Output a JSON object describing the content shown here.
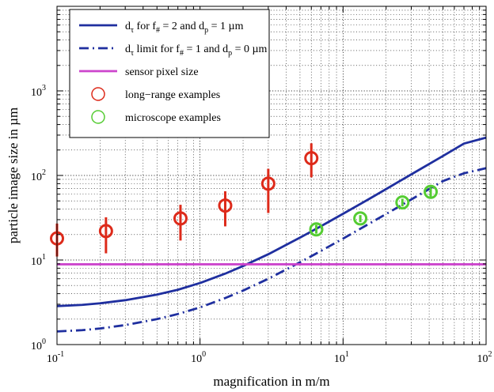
{
  "chart_data": {
    "type": "line",
    "xlabel": "magnification in m/m",
    "ylabel": "particle image size in µm",
    "xscale": "log",
    "yscale": "log",
    "xlim": [
      0.1,
      100
    ],
    "ylim": [
      1,
      10000
    ],
    "grid": "major-and-minor",
    "x_ticks": [
      {
        "base": "10",
        "exp": "-1"
      },
      {
        "base": "10",
        "exp": "0"
      },
      {
        "base": "10",
        "exp": "1"
      },
      {
        "base": "10",
        "exp": "2"
      }
    ],
    "y_ticks": [
      {
        "base": "10",
        "exp": "0"
      },
      {
        "base": "10",
        "exp": "1"
      },
      {
        "base": "10",
        "exp": "2"
      },
      {
        "base": "10",
        "exp": "3"
      }
    ],
    "legend_position": "top-left",
    "series": [
      {
        "name_parts": {
          "pre": "d",
          "sub1": "τ",
          "mid": " for f",
          "sub2": "#",
          "post": " = 2 and d",
          "sub3": "p",
          "end": " = 1 µm"
        },
        "color": "#1f2f9f",
        "style": "solid",
        "points": [
          [
            0.1,
            2.85
          ],
          [
            0.15,
            2.95
          ],
          [
            0.2,
            3.08
          ],
          [
            0.3,
            3.35
          ],
          [
            0.5,
            3.9
          ],
          [
            0.7,
            4.45
          ],
          [
            1,
            5.35
          ],
          [
            1.5,
            6.9
          ],
          [
            2,
            8.5
          ],
          [
            3,
            11.7
          ],
          [
            5,
            18.4
          ],
          [
            7,
            25.1
          ],
          [
            10,
            35.2
          ],
          [
            15,
            52
          ],
          [
            20,
            69
          ],
          [
            30,
            103
          ],
          [
            50,
            170
          ],
          [
            70,
            238
          ],
          [
            100,
            280
          ]
        ]
      },
      {
        "name_parts": {
          "pre": "d",
          "sub1": "τ",
          "mid": " limit for f",
          "sub2": "#",
          "post": " = 1 and d",
          "sub3": "p",
          "end": " = 0 µm"
        },
        "color": "#1f2f9f",
        "style": "dash-dot",
        "points": [
          [
            0.1,
            1.43
          ],
          [
            0.15,
            1.48
          ],
          [
            0.2,
            1.55
          ],
          [
            0.3,
            1.7
          ],
          [
            0.5,
            2.0
          ],
          [
            0.7,
            2.3
          ],
          [
            1,
            2.75
          ],
          [
            1.5,
            3.55
          ],
          [
            2,
            4.35
          ],
          [
            3,
            6.0
          ],
          [
            5,
            9.4
          ],
          [
            7,
            12.8
          ],
          [
            10,
            17.9
          ],
          [
            15,
            26.5
          ],
          [
            20,
            35
          ],
          [
            30,
            52
          ],
          [
            50,
            86
          ],
          [
            70,
            106
          ],
          [
            100,
            122
          ]
        ]
      },
      {
        "name": "sensor pixel size",
        "color": "#cc44cc",
        "style": "solid",
        "points": [
          [
            0.1,
            8.9
          ],
          [
            100,
            8.9
          ]
        ]
      }
    ],
    "marker_series": [
      {
        "name": "long−range examples",
        "color": "#dd2a1a",
        "points": [
          {
            "x": 0.1,
            "y": 18,
            "low": 11,
            "high": 27
          },
          {
            "x": 0.22,
            "y": 22,
            "low": 12,
            "high": 32
          },
          {
            "x": 0.73,
            "y": 31,
            "low": 17,
            "high": 45
          },
          {
            "x": 1.5,
            "y": 44,
            "low": 25,
            "high": 65
          },
          {
            "x": 3,
            "y": 80,
            "low": 36,
            "high": 120
          },
          {
            "x": 6,
            "y": 160,
            "low": 95,
            "high": 240
          }
        ]
      },
      {
        "name": "microscope examples",
        "color": "#55cc33",
        "points": [
          {
            "x": 6.5,
            "y": 23,
            "low": 20.5,
            "high": 26
          },
          {
            "x": 13.2,
            "y": 31,
            "low": 28,
            "high": 34
          },
          {
            "x": 26,
            "y": 48,
            "low": 43,
            "high": 53
          },
          {
            "x": 41,
            "y": 64,
            "low": 56,
            "high": 72
          }
        ]
      }
    ]
  }
}
